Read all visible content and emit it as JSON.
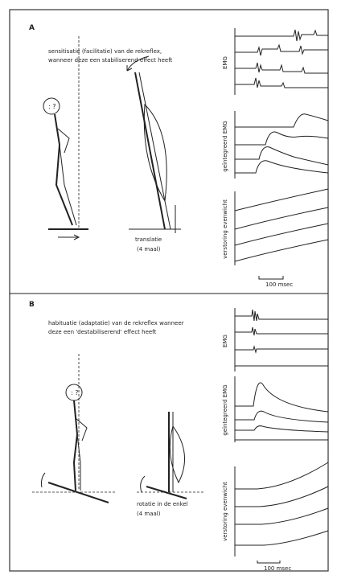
{
  "panels": [
    {
      "label": "A",
      "caption": [
        "sensitisatie (facilitatie) van de rekreflex,",
        "wanneer deze een stabiliserend effect heeft"
      ],
      "trace_labels": [
        "EMG",
        "geïntegreerd EMG",
        "verstoring evenwicht"
      ],
      "movement": "translatie",
      "repeats": "(4 maal)",
      "scale": "100 msec"
    },
    {
      "label": "B",
      "caption": [
        "habituatie (adaptatie) van de rekreflex wanneer",
        "deze een 'destabiliserend' effect heeft"
      ],
      "trace_labels": [
        "EMG",
        "geïntegreerd EMG",
        "verstoring evenwicht"
      ],
      "movement": "rotatie in de enkel",
      "repeats": "(4 maal)",
      "scale": "100 msec"
    }
  ]
}
